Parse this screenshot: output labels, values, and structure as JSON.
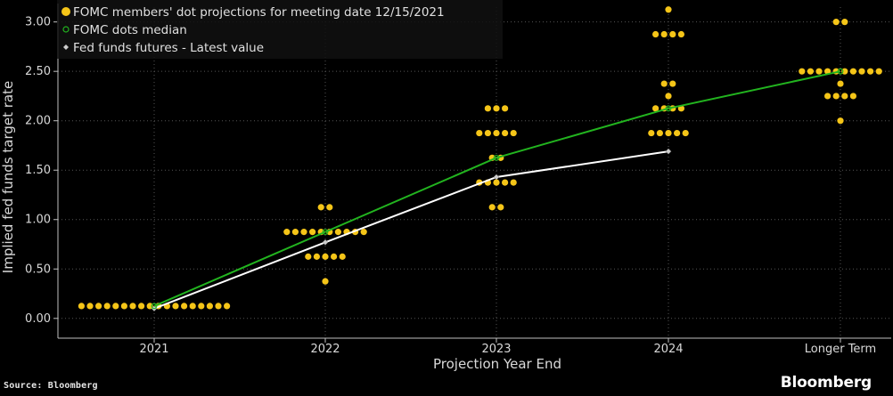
{
  "chart_data": {
    "type": "scatter",
    "categories": [
      "2021",
      "2022",
      "2023",
      "2024",
      "Longer Term"
    ],
    "xlabel": "Projection Year End",
    "ylabel": "Implied fed funds target rate",
    "ylim": [
      -0.2,
      3.15
    ],
    "yticks": [
      "0.00",
      "0.50",
      "1.00",
      "1.50",
      "2.00",
      "2.50",
      "3.00"
    ],
    "grid": true,
    "legend_position": "top-left",
    "colors": {
      "dots": "#f5c518",
      "median": "#22b41f",
      "futures": "#ffffff",
      "axis": "#bfbfbf",
      "grid": "#555555"
    },
    "legend": [
      {
        "label": "FOMC members' dot projections for meeting date 12/15/2021",
        "marker": "dot-icon"
      },
      {
        "label": "FOMC dots median",
        "marker": "circle-icon"
      },
      {
        "label": "Fed funds futures - Latest value",
        "marker": "diamond-icon"
      }
    ],
    "dot_projections": [
      {
        "category": "2021",
        "levels": [
          {
            "rate": 0.125,
            "count": 18
          }
        ]
      },
      {
        "category": "2022",
        "levels": [
          {
            "rate": 1.125,
            "count": 2
          },
          {
            "rate": 0.875,
            "count": 10
          },
          {
            "rate": 0.625,
            "count": 5
          },
          {
            "rate": 0.375,
            "count": 1
          }
        ]
      },
      {
        "category": "2023",
        "levels": [
          {
            "rate": 2.125,
            "count": 3
          },
          {
            "rate": 1.875,
            "count": 5
          },
          {
            "rate": 1.625,
            "count": 2
          },
          {
            "rate": 1.375,
            "count": 5
          },
          {
            "rate": 1.125,
            "count": 2
          }
        ]
      },
      {
        "category": "2024",
        "levels": [
          {
            "rate": 3.125,
            "count": 1
          },
          {
            "rate": 2.875,
            "count": 4
          },
          {
            "rate": 2.375,
            "count": 2
          },
          {
            "rate": 2.25,
            "count": 1
          },
          {
            "rate": 2.125,
            "count": 4
          },
          {
            "rate": 1.875,
            "count": 5
          }
        ]
      },
      {
        "category": "Longer Term",
        "levels": [
          {
            "rate": 3.0,
            "count": 2
          },
          {
            "rate": 2.5,
            "count": 10
          },
          {
            "rate": 2.375,
            "count": 1
          },
          {
            "rate": 2.25,
            "count": 4
          },
          {
            "rate": 2.0,
            "count": 1
          }
        ]
      }
    ],
    "series": [
      {
        "name": "FOMC dots median",
        "values": [
          0.125,
          0.875,
          1.625,
          2.125,
          2.5
        ]
      },
      {
        "name": "Fed funds futures - Latest value",
        "values": [
          0.1,
          0.77,
          1.43,
          1.69,
          null
        ]
      }
    ]
  },
  "footer": {
    "source": "Source: Bloomberg",
    "brand": "Bloomberg"
  }
}
